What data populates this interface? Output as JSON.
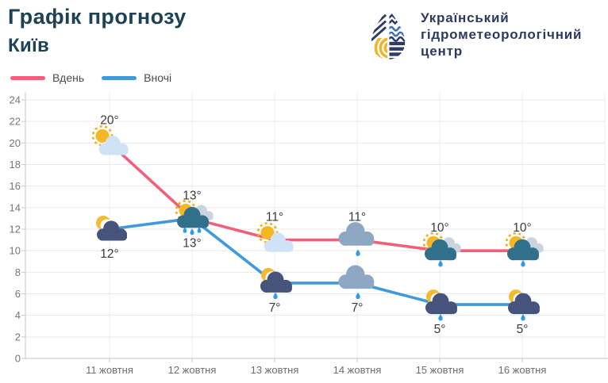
{
  "header": {
    "title": "Графік прогнозу",
    "subtitle": "Київ",
    "logo": {
      "line1": "Український",
      "line2": "гідрометеорологічний",
      "line3": "центр"
    }
  },
  "legend": [
    {
      "label": "Вдень",
      "color": "#f25f7b"
    },
    {
      "label": "Вночі",
      "color": "#3f99da"
    }
  ],
  "colors": {
    "day_line": "#f25f7b",
    "night_line": "#3f99da",
    "title_text": "#1e4253",
    "logo_navy": "#2e3c63",
    "logo_blue": "#4373b5",
    "logo_yellow": "#f0b429",
    "rain_drop": "#2f9ce8"
  },
  "chart_data": {
    "type": "line",
    "title": "Графік прогнозу — Київ",
    "categories": [
      "11 жовтня",
      "12 жовтня",
      "13 жовтня",
      "14 жовтня",
      "15 жовтня",
      "16 жовтня"
    ],
    "series": [
      {
        "name": "Вдень",
        "color": "#f25f7b",
        "values": [
          20,
          13,
          11,
          11,
          10,
          10
        ],
        "labels": [
          "20°",
          "13°",
          "11°",
          "11°",
          "10°",
          "10°"
        ],
        "label_position": "above",
        "icons": [
          "sun-cloud",
          "sun-raincloud-3",
          "sun-cloud",
          "raincloud-1",
          "sun-raincloud-1",
          "sun-raincloud-1"
        ]
      },
      {
        "name": "Вночі",
        "color": "#3f99da",
        "values": [
          12,
          13,
          7,
          7,
          5,
          5
        ],
        "labels": [
          "12°",
          "13°",
          "7°",
          "7°",
          "5°",
          "5°"
        ],
        "label_position": "below",
        "icons": [
          "moon-cloud",
          null,
          "moon-raincloud-1",
          "raincloud-1",
          "moon-raincloud-1",
          "moon-raincloud-1"
        ]
      }
    ],
    "ylim": [
      0,
      24
    ],
    "yticks": [
      0,
      2,
      4,
      6,
      8,
      10,
      12,
      14,
      16,
      18,
      20,
      22,
      24
    ],
    "unit": "°",
    "grid": true,
    "legend_position": "top-left"
  }
}
